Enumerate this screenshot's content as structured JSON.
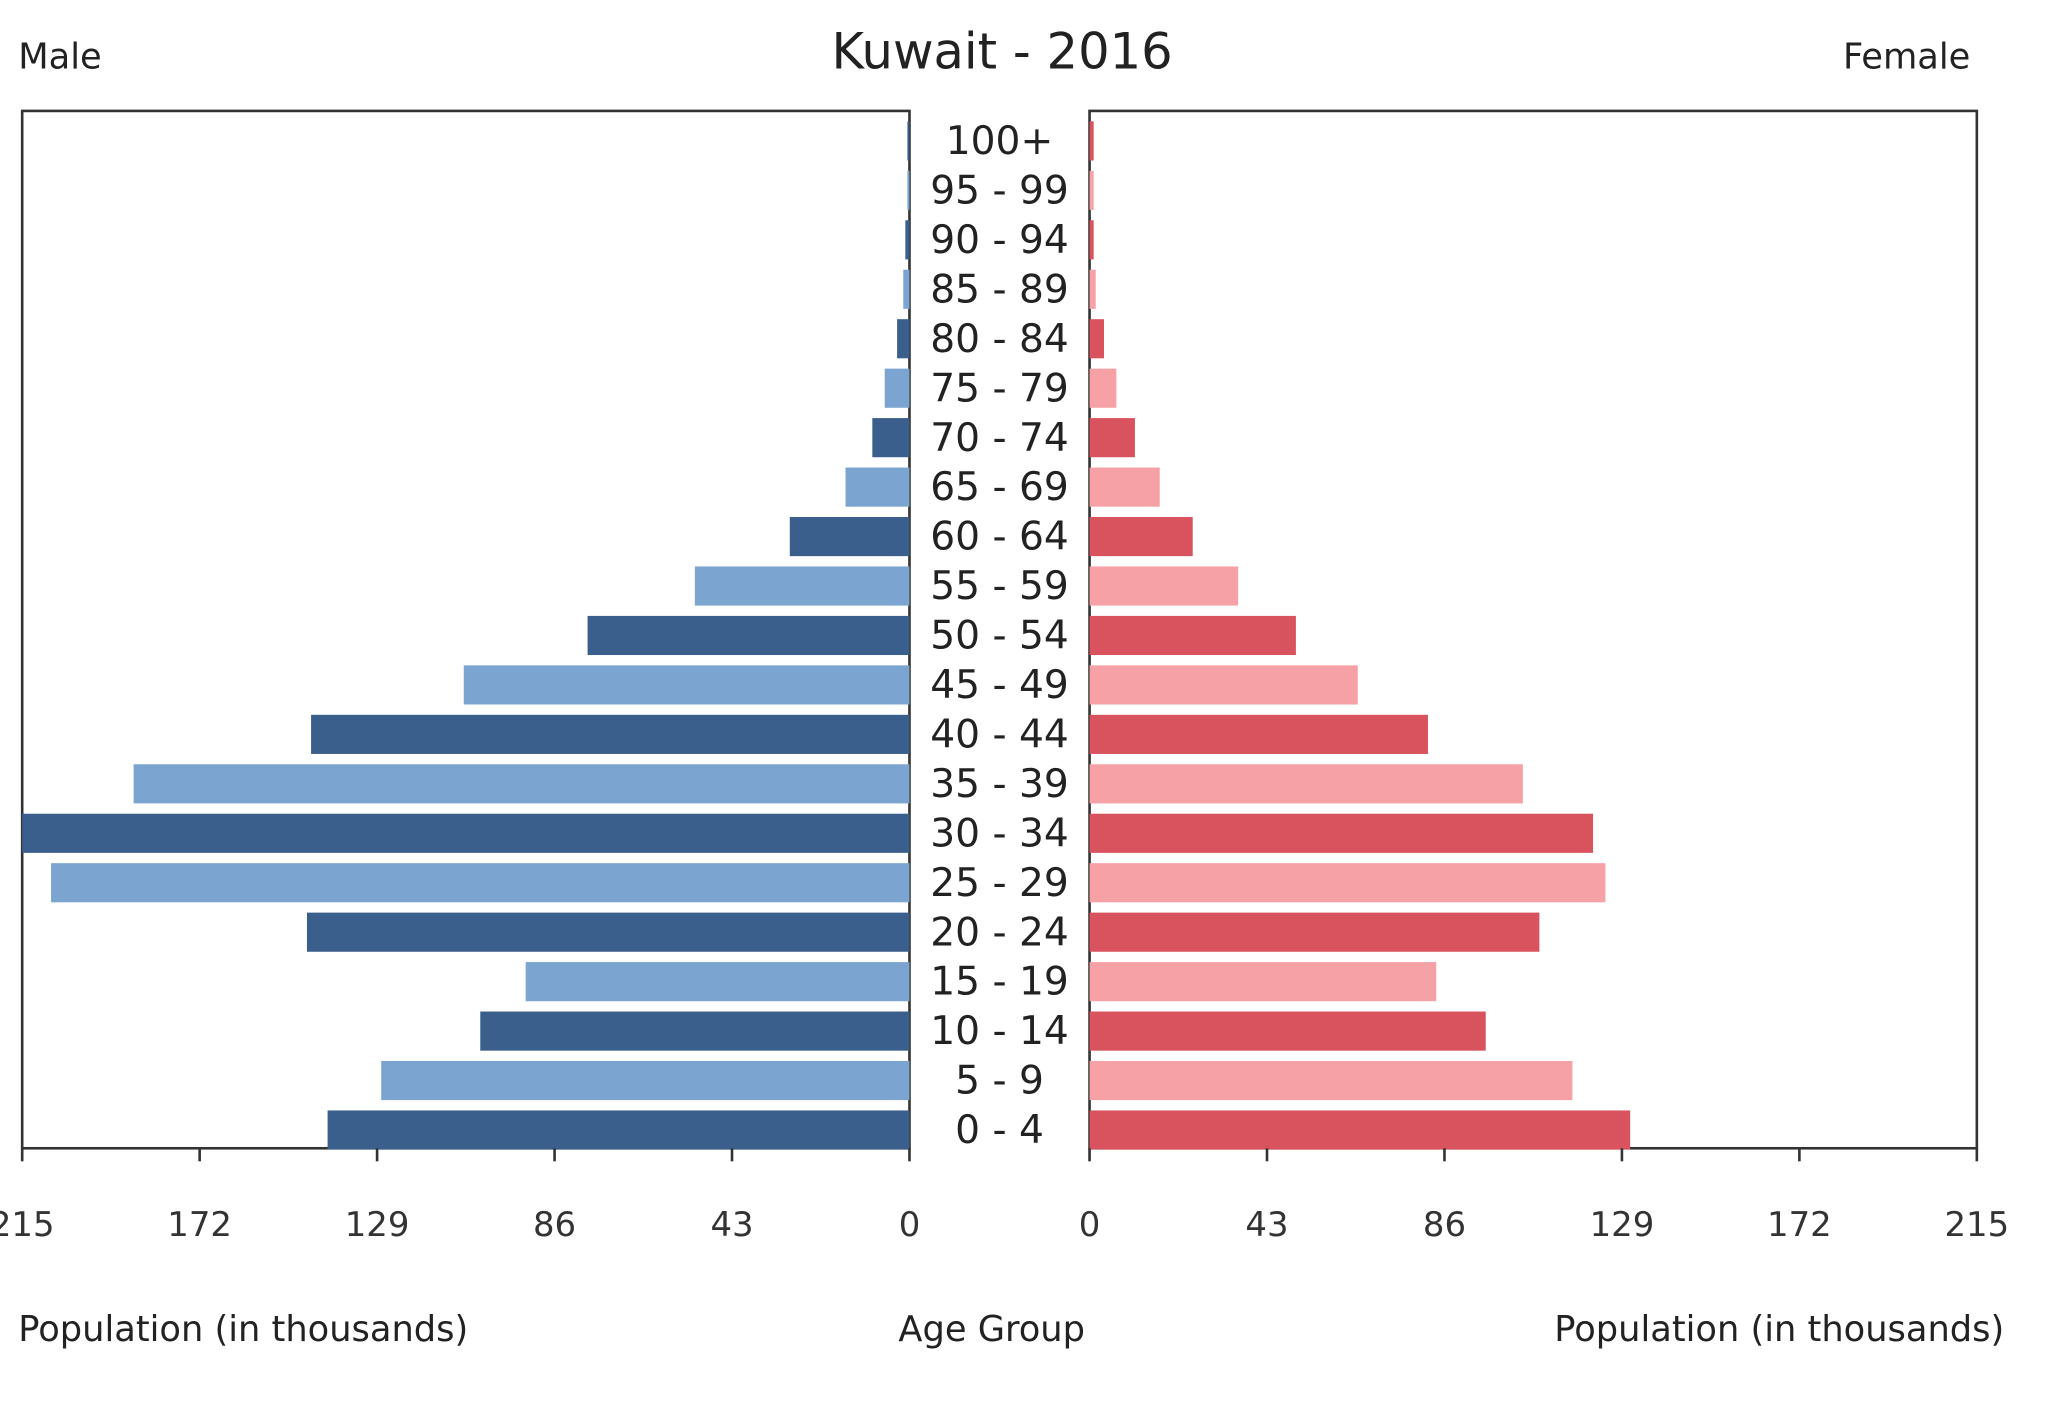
{
  "chart_data": {
    "type": "pyramid",
    "title": "Kuwait - 2016",
    "xlabel": "Population (in thousands)",
    "category_label": "Age Group",
    "categories": [
      "0 - 4",
      "5 - 9",
      "10 - 14",
      "15 - 19",
      "20 - 24",
      "25 - 29",
      "30 - 34",
      "35 - 39",
      "40 - 44",
      "45 - 49",
      "50 - 54",
      "55 - 59",
      "60 - 64",
      "65 - 69",
      "70 - 74",
      "75 - 79",
      "80 - 84",
      "85 - 89",
      "90 - 94",
      "95 - 99",
      "100+"
    ],
    "series": [
      {
        "name": "Male",
        "colors": [
          "#3b5f8c",
          "#7ba4d0"
        ],
        "values": [
          141,
          128,
          104,
          93,
          146,
          208,
          215,
          188,
          145,
          108,
          78,
          52,
          29,
          15.5,
          9,
          6,
          3,
          1.5,
          1,
          0.5,
          0.5
        ]
      },
      {
        "name": "Female",
        "colors": [
          "#d8535e",
          "#f6a1a6"
        ],
        "values": [
          131,
          117,
          96,
          84,
          109,
          125,
          122,
          105,
          82,
          65,
          50,
          36,
          25,
          17,
          11,
          6.5,
          3.5,
          1.5,
          1,
          1,
          1
        ]
      }
    ],
    "xlim": [
      0,
      215
    ],
    "xticks": [
      0,
      43,
      86,
      129,
      172,
      215
    ]
  }
}
